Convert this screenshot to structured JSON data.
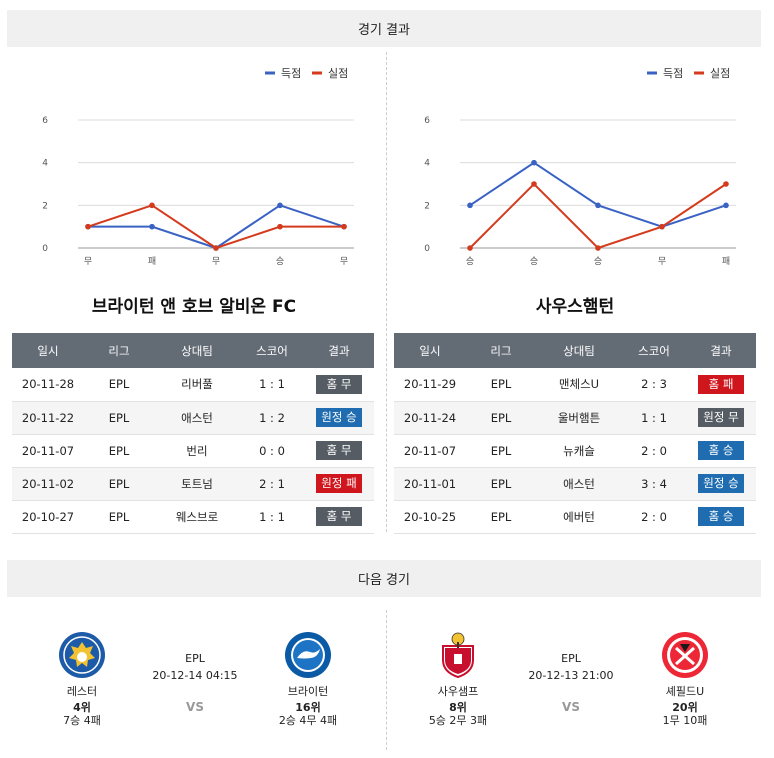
{
  "sections": {
    "results_title": "경기 결과",
    "next_title": "다음 경기"
  },
  "legend": {
    "scored": "득점",
    "conceded": "실점",
    "scored_color": "#3a62c4",
    "conceded_color": "#d43a1c"
  },
  "teams": [
    {
      "name": "브라이턴 앤 호브 알비온 FC",
      "chart_data": {
        "type": "line",
        "categories": [
          "무",
          "패",
          "무",
          "승",
          "무"
        ],
        "ylim": [
          0,
          6
        ],
        "yticks": [
          0,
          2,
          4,
          6
        ],
        "series": [
          {
            "name": "득점",
            "values": [
              1,
              1,
              0,
              2,
              1
            ]
          },
          {
            "name": "실점",
            "values": [
              1,
              2,
              0,
              1,
              1
            ]
          }
        ]
      },
      "table": {
        "headers": [
          "일시",
          "리그",
          "상대팀",
          "스코어",
          "결과"
        ],
        "rows": [
          {
            "date": "20-11-28",
            "league": "EPL",
            "opponent": "리버풀",
            "score": "1 : 1",
            "result": "홈 무",
            "result_type": "home-draw"
          },
          {
            "date": "20-11-22",
            "league": "EPL",
            "opponent": "애스턴",
            "score": "1 : 2",
            "result": "원정 승",
            "result_type": "away-win"
          },
          {
            "date": "20-11-07",
            "league": "EPL",
            "opponent": "번리",
            "score": "0 : 0",
            "result": "홈 무",
            "result_type": "home-draw"
          },
          {
            "date": "20-11-02",
            "league": "EPL",
            "opponent": "토트넘",
            "score": "2 : 1",
            "result": "원정 패",
            "result_type": "away-loss"
          },
          {
            "date": "20-10-27",
            "league": "EPL",
            "opponent": "웨스브로",
            "score": "1 : 1",
            "result": "홈 무",
            "result_type": "home-draw"
          }
        ]
      }
    },
    {
      "name": "사우스햄턴",
      "chart_data": {
        "type": "line",
        "categories": [
          "승",
          "승",
          "승",
          "무",
          "패"
        ],
        "ylim": [
          0,
          6
        ],
        "yticks": [
          0,
          2,
          4,
          6
        ],
        "series": [
          {
            "name": "득점",
            "values": [
              2,
              4,
              2,
              1,
              2
            ]
          },
          {
            "name": "실점",
            "values": [
              0,
              3,
              0,
              1,
              3
            ]
          }
        ]
      },
      "table": {
        "headers": [
          "일시",
          "리그",
          "상대팀",
          "스코어",
          "결과"
        ],
        "rows": [
          {
            "date": "20-11-29",
            "league": "EPL",
            "opponent": "맨체스U",
            "score": "2 : 3",
            "result": "홈 패",
            "result_type": "home-loss"
          },
          {
            "date": "20-11-24",
            "league": "EPL",
            "opponent": "울버햄튼",
            "score": "1 : 1",
            "result": "원정 무",
            "result_type": "away-draw"
          },
          {
            "date": "20-11-07",
            "league": "EPL",
            "opponent": "뉴캐슬",
            "score": "2 : 0",
            "result": "홈 승",
            "result_type": "home-win"
          },
          {
            "date": "20-11-01",
            "league": "EPL",
            "opponent": "애스턴",
            "score": "3 : 4",
            "result": "원정 승",
            "result_type": "away-win"
          },
          {
            "date": "20-10-25",
            "league": "EPL",
            "opponent": "에버턴",
            "score": "2 : 0",
            "result": "홈 승",
            "result_type": "home-win"
          }
        ]
      }
    }
  ],
  "next_matches": [
    {
      "league": "EPL",
      "datetime": "20-12-14 04:15",
      "vs": "VS",
      "home": {
        "name": "레스터",
        "rank": "4위",
        "record": "7승 4패",
        "logo_icon": "leicester-crest-icon"
      },
      "away": {
        "name": "브라이턴",
        "rank": "16위",
        "record": "2승 4무 4패",
        "logo_icon": "brighton-crest-icon"
      }
    },
    {
      "league": "EPL",
      "datetime": "20-12-13 21:00",
      "vs": "VS",
      "home": {
        "name": "사우샘프",
        "rank": "8위",
        "record": "5승 2무 3패",
        "logo_icon": "southampton-crest-icon"
      },
      "away": {
        "name": "셰필드U",
        "rank": "20위",
        "record": "1무 10패",
        "logo_icon": "sheffield-crest-icon"
      }
    }
  ]
}
